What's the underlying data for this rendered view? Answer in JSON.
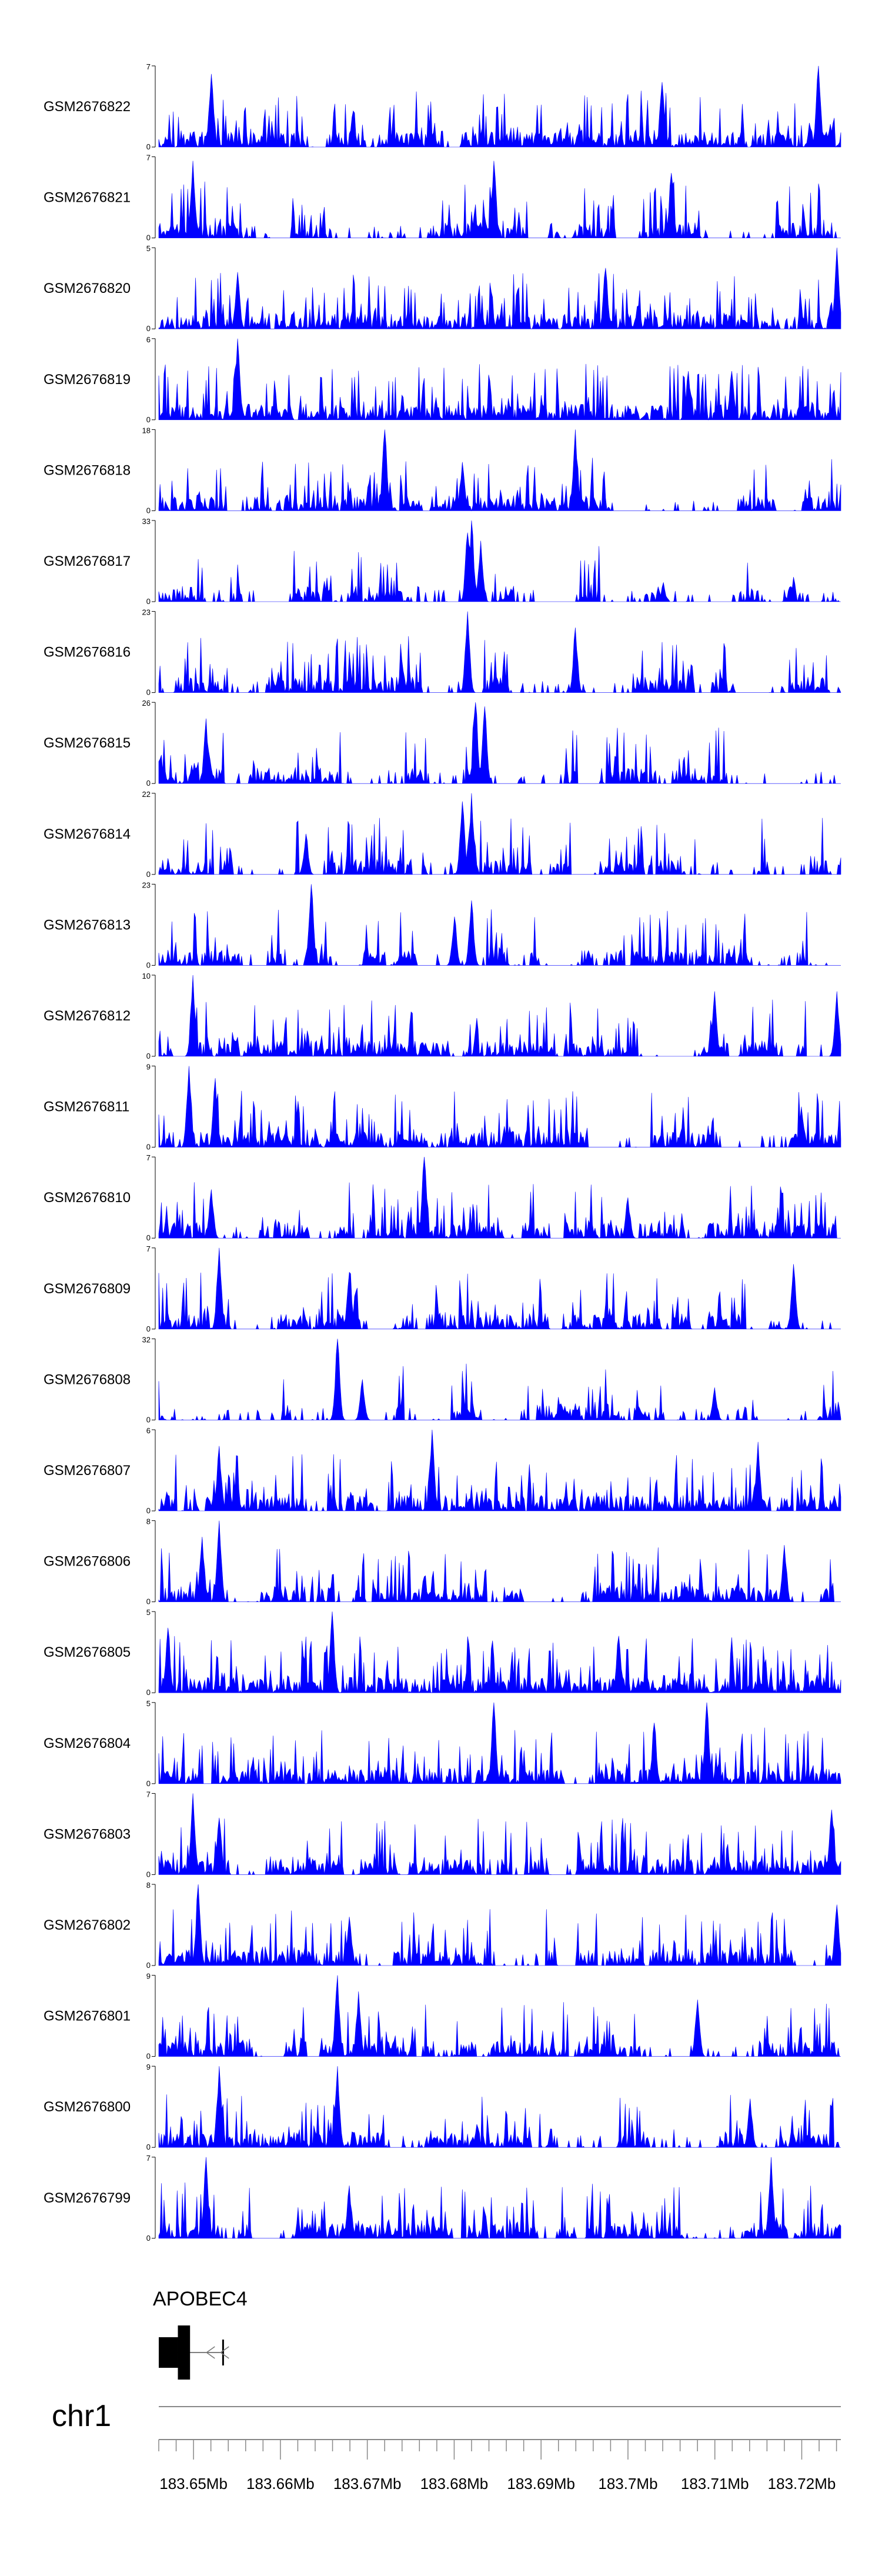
{
  "chart_data": {
    "type": "area",
    "color": "#0000ff",
    "chromosome": "chr1",
    "xlim": [
      183646000,
      183724500
    ],
    "x_ticks": [
      183650000,
      183660000,
      183670000,
      183680000,
      183690000,
      183700000,
      183710000,
      183720000
    ],
    "x_tick_labels": [
      "183.65Mb",
      "183.66Mb",
      "183.67Mb",
      "183.68Mb",
      "183.69Mb",
      "183.7Mb",
      "183.71Mb",
      "183.72Mb"
    ],
    "gene": {
      "name": "APOBEC4",
      "start": 183646000,
      "end": 183653500,
      "strand": "-",
      "exons": [
        [
          183646000,
          183648200
        ],
        [
          183648200,
          183649600
        ],
        [
          183653300,
          183653500
        ]
      ]
    },
    "tracks": [
      {
        "name": "GSM2676822",
        "ymax": 7,
        "ylim_labels": [
          "7",
          "0"
        ],
        "seed": 11,
        "density": 0.78,
        "peaks": [
          [
            183652000,
            0.9
          ],
          [
            183704000,
            0.8
          ],
          [
            183722000,
            1.0
          ]
        ]
      },
      {
        "name": "GSM2676821",
        "ymax": 7,
        "ylim_labels": [
          "7",
          "0"
        ],
        "seed": 23,
        "density": 0.7,
        "peaks": [
          [
            183650000,
            0.95
          ],
          [
            183684500,
            0.95
          ],
          [
            183705000,
            0.8
          ]
        ]
      },
      {
        "name": "GSM2676820",
        "ymax": 5,
        "ylim_labels": [
          "5",
          "0"
        ],
        "seed": 37,
        "density": 0.92,
        "peaks": [
          [
            183655000,
            0.7
          ],
          [
            183697500,
            0.75
          ],
          [
            183724000,
            1.0
          ]
        ]
      },
      {
        "name": "GSM2676819",
        "ymax": 6,
        "ylim_labels": [
          "6",
          "0"
        ],
        "seed": 41,
        "density": 0.85,
        "peaks": [
          [
            183655000,
            1.0
          ],
          [
            183707000,
            0.6
          ],
          [
            183712000,
            0.6
          ]
        ]
      },
      {
        "name": "GSM2676818",
        "ymax": 18,
        "ylim_labels": [
          "18",
          "0"
        ],
        "seed": 53,
        "density": 0.55,
        "peaks": [
          [
            183672000,
            1.0
          ],
          [
            183681000,
            0.6
          ],
          [
            183694000,
            1.0
          ]
        ]
      },
      {
        "name": "GSM2676817",
        "ymax": 33,
        "ylim_labels": [
          "33",
          "0"
        ],
        "seed": 67,
        "density": 0.4,
        "peaks": [
          [
            183682000,
            1.0
          ],
          [
            183681500,
            0.85
          ],
          [
            183683000,
            0.75
          ]
        ]
      },
      {
        "name": "GSM2676816",
        "ymax": 23,
        "ylim_labels": [
          "23",
          "0"
        ],
        "seed": 71,
        "density": 0.45,
        "peaks": [
          [
            183681500,
            1.0
          ],
          [
            183694000,
            0.8
          ],
          [
            183674000,
            0.4
          ]
        ]
      },
      {
        "name": "GSM2676815",
        "ymax": 26,
        "ylim_labels": [
          "26",
          "0"
        ],
        "seed": 83,
        "density": 0.45,
        "peaks": [
          [
            183682500,
            1.0
          ],
          [
            183683500,
            0.95
          ],
          [
            183651500,
            0.8
          ]
        ]
      },
      {
        "name": "GSM2676814",
        "ymax": 22,
        "ylim_labels": [
          "22",
          "0"
        ],
        "seed": 97,
        "density": 0.5,
        "peaks": [
          [
            183682000,
            1.0
          ],
          [
            183681000,
            0.9
          ],
          [
            183663000,
            0.5
          ]
        ]
      },
      {
        "name": "GSM2676813",
        "ymax": 23,
        "ylim_labels": [
          "23",
          "0"
        ],
        "seed": 101,
        "density": 0.48,
        "peaks": [
          [
            183663500,
            1.0
          ],
          [
            183682000,
            0.8
          ],
          [
            183680000,
            0.6
          ]
        ]
      },
      {
        "name": "GSM2676812",
        "ymax": 10,
        "ylim_labels": [
          "10",
          "0"
        ],
        "seed": 113,
        "density": 0.6,
        "peaks": [
          [
            183650000,
            1.0
          ],
          [
            183710000,
            0.8
          ],
          [
            183724000,
            0.8
          ]
        ]
      },
      {
        "name": "GSM2676811",
        "ymax": 9,
        "ylim_labels": [
          "9",
          "0"
        ],
        "seed": 127,
        "density": 0.72,
        "peaks": [
          [
            183649500,
            1.0
          ],
          [
            183652500,
            0.85
          ],
          [
            183720000,
            0.5
          ]
        ]
      },
      {
        "name": "GSM2676810",
        "ymax": 7,
        "ylim_labels": [
          "7",
          "0"
        ],
        "seed": 131,
        "density": 0.75,
        "peaks": [
          [
            183676500,
            1.0
          ],
          [
            183652000,
            0.6
          ],
          [
            183700000,
            0.5
          ]
        ]
      },
      {
        "name": "GSM2676809",
        "ymax": 7,
        "ylim_labels": [
          "7",
          "0"
        ],
        "seed": 139,
        "density": 0.8,
        "peaks": [
          [
            183653000,
            1.0
          ],
          [
            183668000,
            0.7
          ],
          [
            183719000,
            0.8
          ]
        ]
      },
      {
        "name": "GSM2676808",
        "ymax": 32,
        "ylim_labels": [
          "32",
          "0"
        ],
        "seed": 149,
        "density": 0.38,
        "peaks": [
          [
            183666500,
            1.0
          ],
          [
            183669500,
            0.5
          ],
          [
            183710000,
            0.4
          ]
        ]
      },
      {
        "name": "GSM2676807",
        "ymax": 6,
        "ylim_labels": [
          "6",
          "0"
        ],
        "seed": 151,
        "density": 0.88,
        "peaks": [
          [
            183677500,
            1.0
          ],
          [
            183653000,
            0.8
          ],
          [
            183715000,
            0.85
          ]
        ]
      },
      {
        "name": "GSM2676806",
        "ymax": 8,
        "ylim_labels": [
          "8",
          "0"
        ],
        "seed": 163,
        "density": 0.62,
        "peaks": [
          [
            183653000,
            1.0
          ],
          [
            183651000,
            0.8
          ],
          [
            183718000,
            0.7
          ]
        ]
      },
      {
        "name": "GSM2676805",
        "ymax": 5,
        "ylim_labels": [
          "5",
          "0"
        ],
        "seed": 173,
        "density": 0.95,
        "peaks": [
          [
            183666000,
            1.0
          ],
          [
            183699000,
            0.7
          ],
          [
            183647000,
            0.8
          ]
        ]
      },
      {
        "name": "GSM2676804",
        "ymax": 5,
        "ylim_labels": [
          "5",
          "0"
        ],
        "seed": 181,
        "density": 0.85,
        "peaks": [
          [
            183684500,
            1.0
          ],
          [
            183709000,
            1.0
          ],
          [
            183703000,
            0.75
          ]
        ]
      },
      {
        "name": "GSM2676803",
        "ymax": 7,
        "ylim_labels": [
          "7",
          "0"
        ],
        "seed": 191,
        "density": 0.82,
        "peaks": [
          [
            183650000,
            1.0
          ],
          [
            183723500,
            0.8
          ],
          [
            183653000,
            0.7
          ]
        ]
      },
      {
        "name": "GSM2676802",
        "ymax": 8,
        "ylim_labels": [
          "8",
          "0"
        ],
        "seed": 197,
        "density": 0.82,
        "peaks": [
          [
            183650500,
            1.0
          ],
          [
            183724000,
            0.75
          ],
          [
            183668000,
            0.6
          ]
        ]
      },
      {
        "name": "GSM2676801",
        "ymax": 9,
        "ylim_labels": [
          "9",
          "0"
        ],
        "seed": 211,
        "density": 0.7,
        "peaks": [
          [
            183666500,
            1.0
          ],
          [
            183669000,
            0.8
          ],
          [
            183708000,
            0.7
          ]
        ]
      },
      {
        "name": "GSM2676800",
        "ymax": 9,
        "ylim_labels": [
          "9",
          "0"
        ],
        "seed": 223,
        "density": 0.72,
        "peaks": [
          [
            183653000,
            1.0
          ],
          [
            183666500,
            1.0
          ],
          [
            183714000,
            0.6
          ]
        ]
      },
      {
        "name": "GSM2676799",
        "ymax": 7,
        "ylim_labels": [
          "7",
          "0"
        ],
        "seed": 227,
        "density": 0.8,
        "peaks": [
          [
            183651500,
            1.0
          ],
          [
            183716500,
            1.0
          ],
          [
            183668000,
            0.65
          ]
        ]
      }
    ]
  }
}
